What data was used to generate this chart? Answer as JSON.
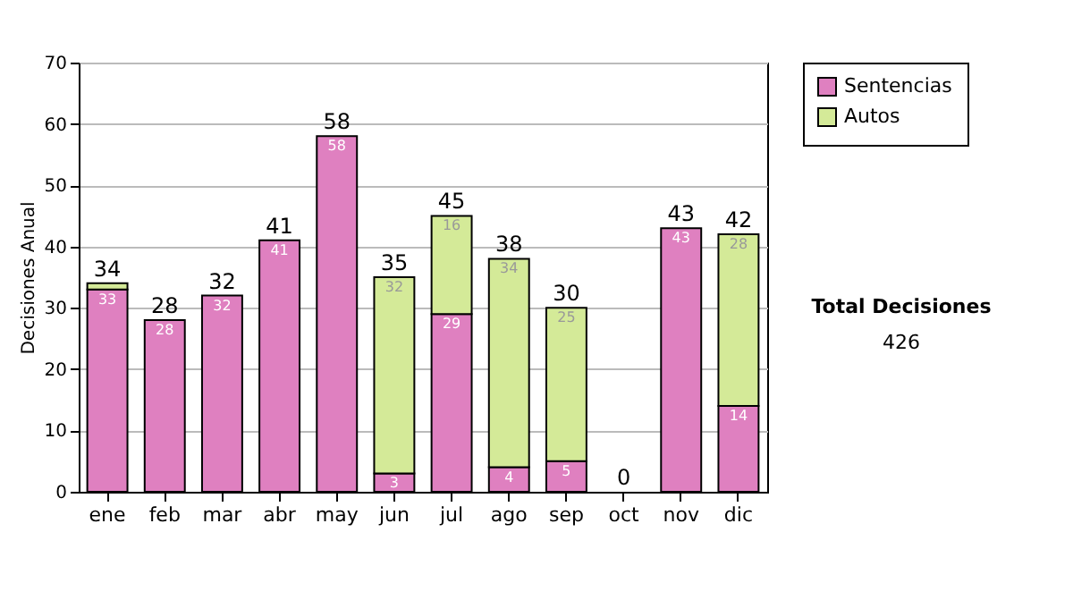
{
  "chart_data": {
    "type": "bar",
    "stacked": true,
    "ylabel": "Decisiones Anual",
    "categories": [
      "ene",
      "feb",
      "mar",
      "abr",
      "may",
      "jun",
      "jul",
      "ago",
      "sep",
      "oct",
      "nov",
      "dic"
    ],
    "series": [
      {
        "name": "Sentencias",
        "color": "#df80c0",
        "values": [
          33,
          28,
          32,
          41,
          58,
          3,
          29,
          4,
          5,
          0,
          43,
          14
        ],
        "value_labels": [
          "33",
          "28",
          "32",
          "41",
          "58",
          "3",
          "29",
          "4",
          "5",
          null,
          "43",
          "14"
        ]
      },
      {
        "name": "Autos",
        "color": "#d4ea98",
        "values": [
          1,
          0,
          0,
          0,
          0,
          32,
          16,
          34,
          25,
          0,
          0,
          28
        ],
        "value_labels": [
          null,
          null,
          null,
          null,
          null,
          "32",
          "16",
          "34",
          "25",
          null,
          null,
          "28"
        ]
      }
    ],
    "totals": [
      "34",
      "28",
      "32",
      "41",
      "58",
      "35",
      "45",
      "38",
      "30",
      "0",
      "43",
      "42"
    ],
    "ylim": [
      0,
      70
    ],
    "yticks": [
      0,
      10,
      20,
      30,
      40,
      50,
      60,
      70
    ],
    "grid": "y",
    "legend": "right",
    "annotations": [
      "Total Decisiones",
      "426"
    ]
  }
}
